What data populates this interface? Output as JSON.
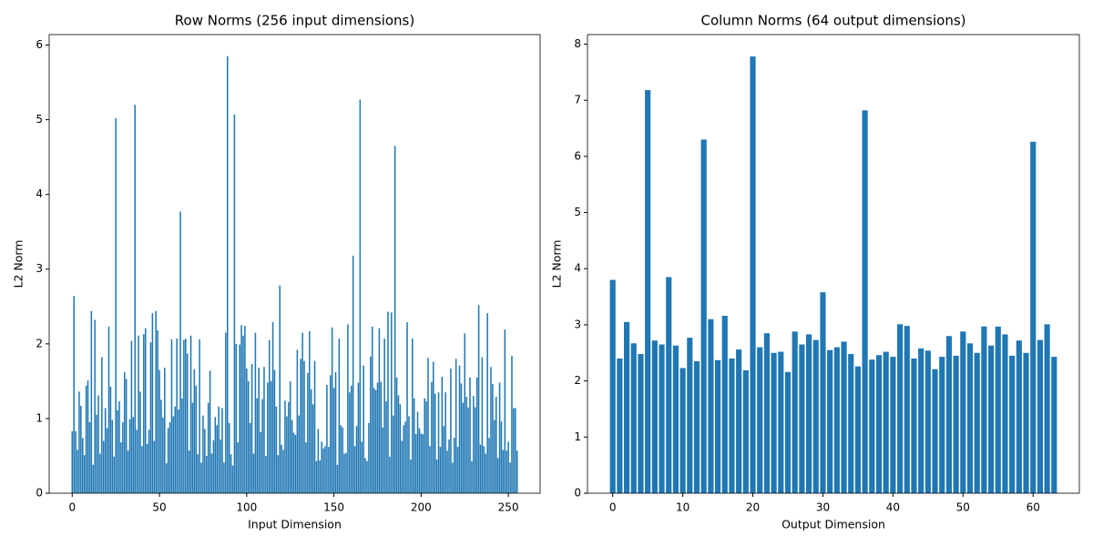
{
  "chart_data": [
    {
      "type": "bar",
      "title": "Row Norms (256 input dimensions)",
      "x_label": "Input Dimension",
      "y_label": "L2 Norm",
      "color": "#1f77b4",
      "x": [
        0,
        1,
        2,
        3,
        4,
        5,
        6,
        7,
        8,
        9,
        10,
        11,
        12,
        13,
        14,
        15,
        16,
        17,
        18,
        19,
        20,
        21,
        22,
        23,
        24,
        25,
        26,
        27,
        28,
        29,
        30,
        31,
        32,
        33,
        34,
        35,
        36,
        37,
        38,
        39,
        40,
        41,
        42,
        43,
        44,
        45,
        46,
        47,
        48,
        49,
        50,
        51,
        52,
        53,
        54,
        55,
        56,
        57,
        58,
        59,
        60,
        61,
        62,
        63,
        64,
        65,
        66,
        67,
        68,
        69,
        70,
        71,
        72,
        73,
        74,
        75,
        76,
        77,
        78,
        79,
        80,
        81,
        82,
        83,
        84,
        85,
        86,
        87,
        88,
        89,
        90,
        91,
        92,
        93,
        94,
        95,
        96,
        97,
        98,
        99,
        100,
        101,
        102,
        103,
        104,
        105,
        106,
        107,
        108,
        109,
        110,
        111,
        112,
        113,
        114,
        115,
        116,
        117,
        118,
        119,
        120,
        121,
        122,
        123,
        124,
        125,
        126,
        127,
        128,
        129,
        130,
        131,
        132,
        133,
        134,
        135,
        136,
        137,
        138,
        139,
        140,
        141,
        142,
        143,
        144,
        145,
        146,
        147,
        148,
        149,
        150,
        151,
        152,
        153,
        154,
        155,
        156,
        157,
        158,
        159,
        160,
        161,
        162,
        163,
        164,
        165,
        166,
        167,
        168,
        169,
        170,
        171,
        172,
        173,
        174,
        175,
        176,
        177,
        178,
        179,
        180,
        181,
        182,
        183,
        184,
        185,
        186,
        187,
        188,
        189,
        190,
        191,
        192,
        193,
        194,
        195,
        196,
        197,
        198,
        199,
        200,
        201,
        202,
        203,
        204,
        205,
        206,
        207,
        208,
        209,
        210,
        211,
        212,
        213,
        214,
        215,
        216,
        217,
        218,
        219,
        220,
        221,
        222,
        223,
        224,
        225,
        226,
        227,
        228,
        229,
        230,
        231,
        232,
        233,
        234,
        235,
        236,
        237,
        238,
        239,
        240,
        241,
        242,
        243,
        244,
        245,
        246,
        247,
        248,
        249,
        250,
        251,
        252,
        253,
        254,
        255
      ],
      "values": [
        0.83,
        2.64,
        0.83,
        0.58,
        1.36,
        1.17,
        0.74,
        0.51,
        1.44,
        1.51,
        0.95,
        2.44,
        0.38,
        2.32,
        1.05,
        1.31,
        0.53,
        1.82,
        0.7,
        1.14,
        0.87,
        2.23,
        1.43,
        0.98,
        0.49,
        5.02,
        1.11,
        1.23,
        0.68,
        0.95,
        1.62,
        1.53,
        0.57,
        0.99,
        2.04,
        1.02,
        5.2,
        0.85,
        2.11,
        1.36,
        0.63,
        2.13,
        2.21,
        0.66,
        0.85,
        2.02,
        2.41,
        0.7,
        2.44,
        2.18,
        1.65,
        1.25,
        1.01,
        1.68,
        0.4,
        0.87,
        0.95,
        2.06,
        1.03,
        1.16,
        2.07,
        1.12,
        3.77,
        1.27,
        2.05,
        2.07,
        1.87,
        0.57,
        2.11,
        1.21,
        1.66,
        1.44,
        0.52,
        2.06,
        0.41,
        1.04,
        0.86,
        0.5,
        1.21,
        1.64,
        0.53,
        0.71,
        1.02,
        0.91,
        1.16,
        0.72,
        1.14,
        0.41,
        2.15,
        5.85,
        0.94,
        0.52,
        0.37,
        5.07,
        2.0,
        0.68,
        1.99,
        2.25,
        2.11,
        2.24,
        1.67,
        1.5,
        0.94,
        1.73,
        0.53,
        2.15,
        1.27,
        1.68,
        0.82,
        1.26,
        1.69,
        0.5,
        1.48,
        2.05,
        1.5,
        2.29,
        1.65,
        1.16,
        0.51,
        2.78,
        0.65,
        0.58,
        1.24,
        1.03,
        1.22,
        1.5,
        0.98,
        0.81,
        0.78,
        1.92,
        1.04,
        1.8,
        2.15,
        1.77,
        0.68,
        1.61,
        2.17,
        1.39,
        1.19,
        1.77,
        0.43,
        0.86,
        0.44,
        0.69,
        0.6,
        0.63,
        1.45,
        0.62,
        1.58,
        2.22,
        1.41,
        1.62,
        0.38,
        2.07,
        0.91,
        0.88,
        0.53,
        0.54,
        2.26,
        1.35,
        1.44,
        3.18,
        0.63,
        0.9,
        1.48,
        5.27,
        0.69,
        1.71,
        0.47,
        0.43,
        0.94,
        1.83,
        2.23,
        1.41,
        1.38,
        1.48,
        2.21,
        1.49,
        0.88,
        2.07,
        1.23,
        2.43,
        0.49,
        2.42,
        1.04,
        4.65,
        1.55,
        1.31,
        1.19,
        0.7,
        0.91,
        0.96,
        2.29,
        1.03,
        0.45,
        2.07,
        1.27,
        0.79,
        1.09,
        0.87,
        0.8,
        0.79,
        1.27,
        1.23,
        1.81,
        0.63,
        1.49,
        1.76,
        1.33,
        0.45,
        1.35,
        0.62,
        1.56,
        0.9,
        1.35,
        0.57,
        0.72,
        1.67,
        0.41,
        0.74,
        1.8,
        0.62,
        1.71,
        1.47,
        1.21,
        2.14,
        1.29,
        1.15,
        1.55,
        0.43,
        1.3,
        1.15,
        1.55,
        2.52,
        0.65,
        1.82,
        0.63,
        0.53,
        2.41,
        0.74,
        1.69,
        1.46,
        0.98,
        1.29,
        0.47,
        1.48,
        0.96,
        0.58,
        2.19,
        0.57,
        0.69,
        0.41,
        1.84,
        1.14,
        1.14,
        0.57
      ],
      "xlim": [
        -13.2,
        268.2
      ],
      "xticks": [
        0,
        50,
        100,
        150,
        200,
        250
      ],
      "ylim": [
        0,
        6.14
      ],
      "yticks": [
        0,
        1,
        2,
        3,
        4,
        5,
        6
      ]
    },
    {
      "type": "bar",
      "title": "Column Norms (64 output dimensions)",
      "x_label": "Output Dimension",
      "y_label": "L2 Norm",
      "color": "#1f77b4",
      "x": [
        0,
        1,
        2,
        3,
        4,
        5,
        6,
        7,
        8,
        9,
        10,
        11,
        12,
        13,
        14,
        15,
        16,
        17,
        18,
        19,
        20,
        21,
        22,
        23,
        24,
        25,
        26,
        27,
        28,
        29,
        30,
        31,
        32,
        33,
        34,
        35,
        36,
        37,
        38,
        39,
        40,
        41,
        42,
        43,
        44,
        45,
        46,
        47,
        48,
        49,
        50,
        51,
        52,
        53,
        54,
        55,
        56,
        57,
        58,
        59,
        60,
        61,
        62,
        63
      ],
      "values": [
        3.8,
        2.4,
        3.05,
        2.67,
        2.48,
        7.18,
        2.72,
        2.65,
        3.85,
        2.63,
        2.23,
        2.77,
        2.35,
        6.3,
        3.1,
        2.37,
        3.16,
        2.4,
        2.56,
        2.19,
        7.78,
        2.6,
        2.85,
        2.5,
        2.52,
        2.16,
        2.88,
        2.65,
        2.83,
        2.73,
        3.58,
        2.55,
        2.6,
        2.7,
        2.48,
        2.26,
        6.82,
        2.38,
        2.46,
        2.52,
        2.43,
        3.01,
        2.98,
        2.4,
        2.58,
        2.54,
        2.21,
        2.43,
        2.8,
        2.45,
        2.88,
        2.67,
        2.5,
        2.97,
        2.63,
        2.97,
        2.83,
        2.45,
        2.72,
        2.5,
        6.26,
        2.73,
        3.01,
        2.43
      ],
      "xlim": [
        -3.6,
        66.6
      ],
      "xticks": [
        0,
        10,
        20,
        30,
        40,
        50,
        60
      ],
      "ylim": [
        0,
        8.17
      ],
      "yticks": [
        0,
        1,
        2,
        3,
        4,
        5,
        6,
        7,
        8
      ]
    }
  ]
}
